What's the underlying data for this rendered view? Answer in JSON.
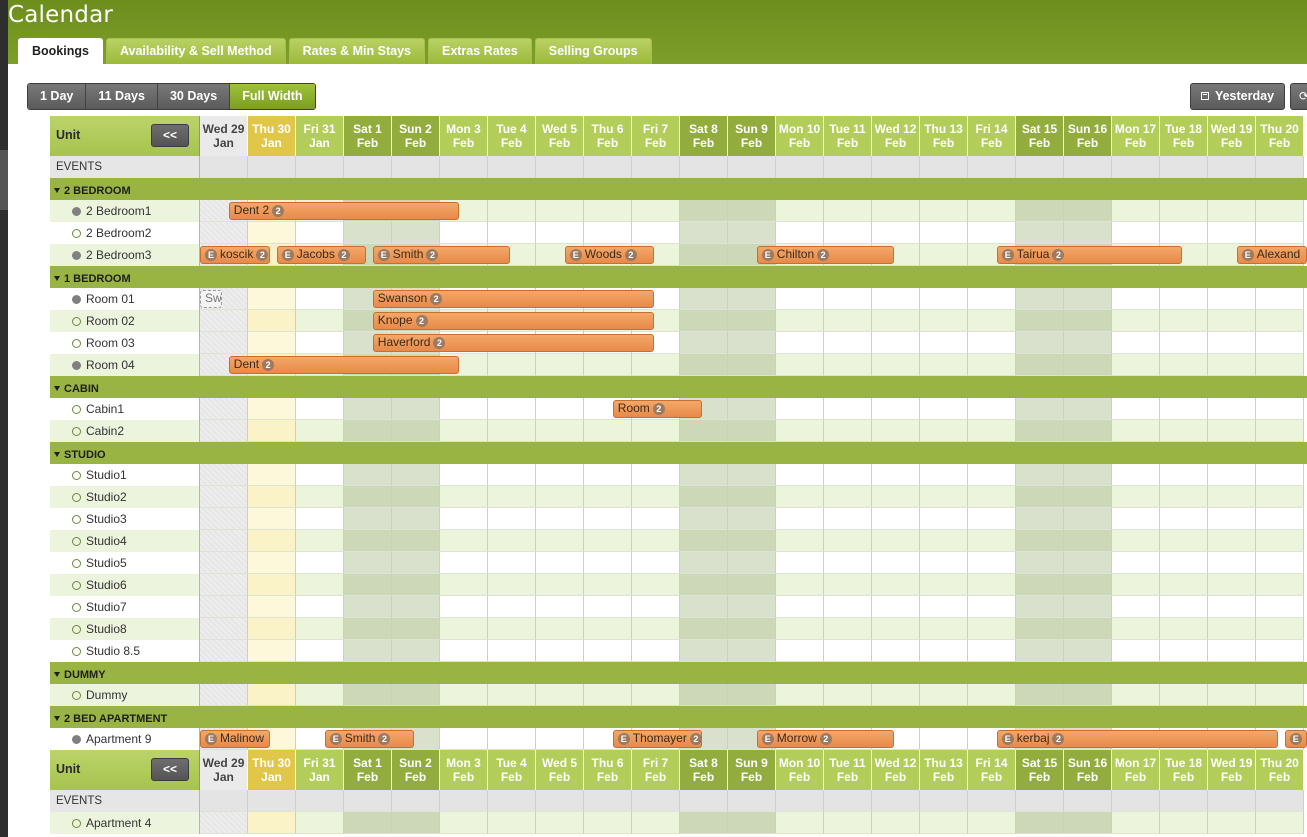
{
  "app": {
    "title": "Calendar"
  },
  "tabs": [
    {
      "label": "Bookings",
      "active": true
    },
    {
      "label": "Availability & Sell Method"
    },
    {
      "label": "Rates & Min Stays"
    },
    {
      "label": "Extras Rates"
    },
    {
      "label": "Selling Groups"
    }
  ],
  "view_buttons": [
    {
      "label": "1 Day"
    },
    {
      "label": "11 Days"
    },
    {
      "label": "30 Days"
    },
    {
      "label": "Full Width",
      "active": true
    }
  ],
  "nav": {
    "yesterday_label": "Yesterday",
    "yesterday_icon": "calendar-icon",
    "refresh_icon": "refresh-icon"
  },
  "grid": {
    "unit_label": "Unit",
    "collapse_label": "<<",
    "events_label": "EVENTS",
    "days": [
      {
        "l1": "Wed 29",
        "l2": "Jan",
        "kind": "past"
      },
      {
        "l1": "Thu 30",
        "l2": "Jan",
        "kind": "today"
      },
      {
        "l1": "Fri 31",
        "l2": "Jan",
        "kind": "weekday"
      },
      {
        "l1": "Sat 1",
        "l2": "Feb",
        "kind": "weekend"
      },
      {
        "l1": "Sun 2",
        "l2": "Feb",
        "kind": "weekend"
      },
      {
        "l1": "Mon 3",
        "l2": "Feb",
        "kind": "weekday"
      },
      {
        "l1": "Tue 4",
        "l2": "Feb",
        "kind": "weekday"
      },
      {
        "l1": "Wed 5",
        "l2": "Feb",
        "kind": "weekday"
      },
      {
        "l1": "Thu 6",
        "l2": "Feb",
        "kind": "weekday"
      },
      {
        "l1": "Fri 7",
        "l2": "Feb",
        "kind": "weekday"
      },
      {
        "l1": "Sat 8",
        "l2": "Feb",
        "kind": "weekend"
      },
      {
        "l1": "Sun 9",
        "l2": "Feb",
        "kind": "weekend"
      },
      {
        "l1": "Mon 10",
        "l2": "Feb",
        "kind": "weekday"
      },
      {
        "l1": "Tue 11",
        "l2": "Feb",
        "kind": "weekday"
      },
      {
        "l1": "Wed 12",
        "l2": "Feb",
        "kind": "weekday"
      },
      {
        "l1": "Thu 13",
        "l2": "Feb",
        "kind": "weekday"
      },
      {
        "l1": "Fri 14",
        "l2": "Feb",
        "kind": "weekday"
      },
      {
        "l1": "Sat 15",
        "l2": "Feb",
        "kind": "weekend"
      },
      {
        "l1": "Sun 16",
        "l2": "Feb",
        "kind": "weekend"
      },
      {
        "l1": "Mon 17",
        "l2": "Feb",
        "kind": "weekday"
      },
      {
        "l1": "Tue 18",
        "l2": "Feb",
        "kind": "weekday"
      },
      {
        "l1": "Wed 19",
        "l2": "Feb",
        "kind": "weekday"
      },
      {
        "l1": "Thu 20",
        "l2": "Feb",
        "kind": "weekday"
      }
    ],
    "rows": [
      {
        "type": "header"
      },
      {
        "type": "events"
      },
      {
        "type": "group",
        "label": "2 BEDROOM"
      },
      {
        "type": "unit",
        "label": "2 Bedroom1",
        "dot": "filled",
        "alt": true,
        "bookings": [
          {
            "name": "Dent 2",
            "start": 0.6,
            "end": 5.4,
            "count": "2"
          }
        ]
      },
      {
        "type": "unit",
        "label": "2 Bedroom2",
        "dot": "empty",
        "alt": false,
        "bookings": []
      },
      {
        "type": "unit",
        "label": "2 Bedroom3",
        "dot": "filled",
        "alt": true,
        "bookings": [
          {
            "name": "koscik",
            "start": 0.0,
            "end": 1.45,
            "e": "E",
            "count": "2"
          },
          {
            "name": "Jacobs",
            "start": 1.6,
            "end": 3.45,
            "e": "E",
            "count": "2"
          },
          {
            "name": "Smith",
            "start": 3.6,
            "end": 6.45,
            "e": "E",
            "count": "2"
          },
          {
            "name": "Woods",
            "start": 7.6,
            "end": 9.45,
            "e": "E",
            "count": "2"
          },
          {
            "name": "Chilton",
            "start": 11.6,
            "end": 14.45,
            "e": "E",
            "count": "2"
          },
          {
            "name": "Tairua",
            "start": 16.6,
            "end": 20.45,
            "e": "E",
            "count": "2"
          },
          {
            "name": "Alexand",
            "start": 21.6,
            "end": 23.5,
            "e": "E"
          }
        ]
      },
      {
        "type": "group",
        "label": "1 BEDROOM"
      },
      {
        "type": "unit",
        "label": "Room 01",
        "dot": "filled",
        "alt": false,
        "bookings": [
          {
            "name": "Sw",
            "start": 0.0,
            "end": 0.45,
            "sketch": true
          },
          {
            "name": "Swanson",
            "start": 3.6,
            "end": 9.45,
            "count": "2"
          }
        ]
      },
      {
        "type": "unit",
        "label": "Room 02",
        "dot": "empty",
        "alt": true,
        "bookings": [
          {
            "name": "Knope",
            "start": 3.6,
            "end": 9.45,
            "count": "2"
          }
        ]
      },
      {
        "type": "unit",
        "label": "Room 03",
        "dot": "empty",
        "alt": false,
        "bookings": [
          {
            "name": "Haverford",
            "start": 3.6,
            "end": 9.45,
            "count": "2"
          }
        ]
      },
      {
        "type": "unit",
        "label": "Room 04",
        "dot": "filled",
        "alt": true,
        "bookings": [
          {
            "name": "Dent",
            "start": 0.6,
            "end": 5.4,
            "count": "2"
          }
        ]
      },
      {
        "type": "group",
        "label": "CABIN"
      },
      {
        "type": "unit",
        "label": "Cabin1",
        "dot": "empty",
        "alt": false,
        "bookings": [
          {
            "name": "Room",
            "start": 8.6,
            "end": 10.45,
            "count": "2"
          }
        ]
      },
      {
        "type": "unit",
        "label": "Cabin2",
        "dot": "empty",
        "alt": true,
        "bookings": []
      },
      {
        "type": "group",
        "label": "STUDIO"
      },
      {
        "type": "unit",
        "label": "Studio1",
        "dot": "empty",
        "alt": false,
        "bookings": []
      },
      {
        "type": "unit",
        "label": "Studio2",
        "dot": "empty",
        "alt": true,
        "bookings": []
      },
      {
        "type": "unit",
        "label": "Studio3",
        "dot": "empty",
        "alt": false,
        "bookings": []
      },
      {
        "type": "unit",
        "label": "Studio4",
        "dot": "empty",
        "alt": true,
        "bookings": []
      },
      {
        "type": "unit",
        "label": "Studio5",
        "dot": "empty",
        "alt": false,
        "bookings": []
      },
      {
        "type": "unit",
        "label": "Studio6",
        "dot": "empty",
        "alt": true,
        "bookings": []
      },
      {
        "type": "unit",
        "label": "Studio7",
        "dot": "empty",
        "alt": false,
        "bookings": []
      },
      {
        "type": "unit",
        "label": "Studio8",
        "dot": "empty",
        "alt": true,
        "bookings": []
      },
      {
        "type": "unit",
        "label": "Studio 8.5",
        "dot": "empty",
        "alt": false,
        "bookings": []
      },
      {
        "type": "group",
        "label": "DUMMY"
      },
      {
        "type": "unit",
        "label": "Dummy",
        "dot": "empty",
        "alt": true,
        "bookings": []
      },
      {
        "type": "group",
        "label": "2 BED APARTMENT"
      },
      {
        "type": "unit",
        "label": "Apartment 9",
        "dot": "filled",
        "alt": false,
        "bookings": [
          {
            "name": "Malinow",
            "start": 0.0,
            "end": 1.45,
            "e": "E"
          },
          {
            "name": "Smith",
            "start": 2.6,
            "end": 4.45,
            "e": "E",
            "count": "2"
          },
          {
            "name": "Thomayer",
            "start": 8.6,
            "end": 10.45,
            "e": "E",
            "count": "2"
          },
          {
            "name": "Morrow",
            "start": 11.6,
            "end": 14.45,
            "e": "E",
            "count": "2"
          },
          {
            "name": "kerbaj",
            "start": 16.6,
            "end": 22.45,
            "e": "E",
            "count": "2"
          },
          {
            "name": "",
            "start": 22.6,
            "end": 23.5,
            "e": "E"
          }
        ]
      },
      {
        "type": "header"
      },
      {
        "type": "events"
      },
      {
        "type": "unit",
        "label": "Apartment 4",
        "dot": "empty",
        "alt": true,
        "bookings": []
      }
    ]
  }
}
